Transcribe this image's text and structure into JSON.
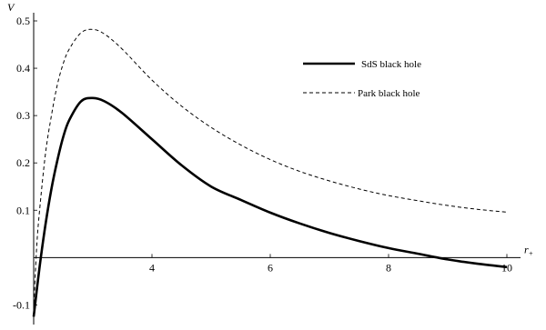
{
  "chart_data": {
    "type": "line",
    "xlabel": "r",
    "xlabel_sub": "+",
    "ylabel": "V",
    "xlim": [
      2,
      10
    ],
    "ylim": [
      -0.13,
      0.5
    ],
    "x_ticks": [
      4,
      6,
      8,
      10
    ],
    "x_tick_labels": [
      "4",
      "6",
      "8",
      "10"
    ],
    "y_ticks": [
      -0.1,
      0.1,
      0.2,
      0.3,
      0.4,
      0.5
    ],
    "y_tick_labels": [
      "-0.1",
      "0.1",
      "0.2",
      "0.3",
      "0.4",
      "0.5"
    ],
    "grid": false,
    "legend_position": "top-right",
    "series": [
      {
        "name": "SdS black hole",
        "style": "solid",
        "color": "#000000",
        "x": [
          2.0,
          2.1,
          2.2,
          2.3,
          2.4,
          2.5,
          2.6,
          2.8,
          3.0,
          3.2,
          3.5,
          4.0,
          4.5,
          5.0,
          5.5,
          6.0,
          6.5,
          7.0,
          7.5,
          8.0,
          8.5,
          9.0,
          9.5,
          10.0
        ],
        "y": [
          -0.125,
          -0.02,
          0.07,
          0.145,
          0.205,
          0.255,
          0.29,
          0.33,
          0.337,
          0.33,
          0.305,
          0.25,
          0.195,
          0.15,
          0.122,
          0.095,
          0.072,
          0.052,
          0.035,
          0.02,
          0.008,
          -0.004,
          -0.013,
          -0.02
        ]
      },
      {
        "name": "Park black hole",
        "style": "dashed",
        "color": "#000000",
        "x": [
          2.0,
          2.05,
          2.1,
          2.2,
          2.3,
          2.4,
          2.5,
          2.6,
          2.8,
          3.0,
          3.2,
          3.5,
          4.0,
          4.5,
          5.0,
          5.5,
          6.0,
          6.5,
          7.0,
          7.5,
          8.0,
          8.5,
          9.0,
          9.5,
          10.0
        ],
        "y": [
          -0.11,
          0.02,
          0.1,
          0.22,
          0.3,
          0.365,
          0.41,
          0.44,
          0.475,
          0.482,
          0.472,
          0.44,
          0.375,
          0.32,
          0.275,
          0.238,
          0.207,
          0.182,
          0.162,
          0.145,
          0.131,
          0.12,
          0.11,
          0.102,
          0.096
        ]
      }
    ]
  }
}
